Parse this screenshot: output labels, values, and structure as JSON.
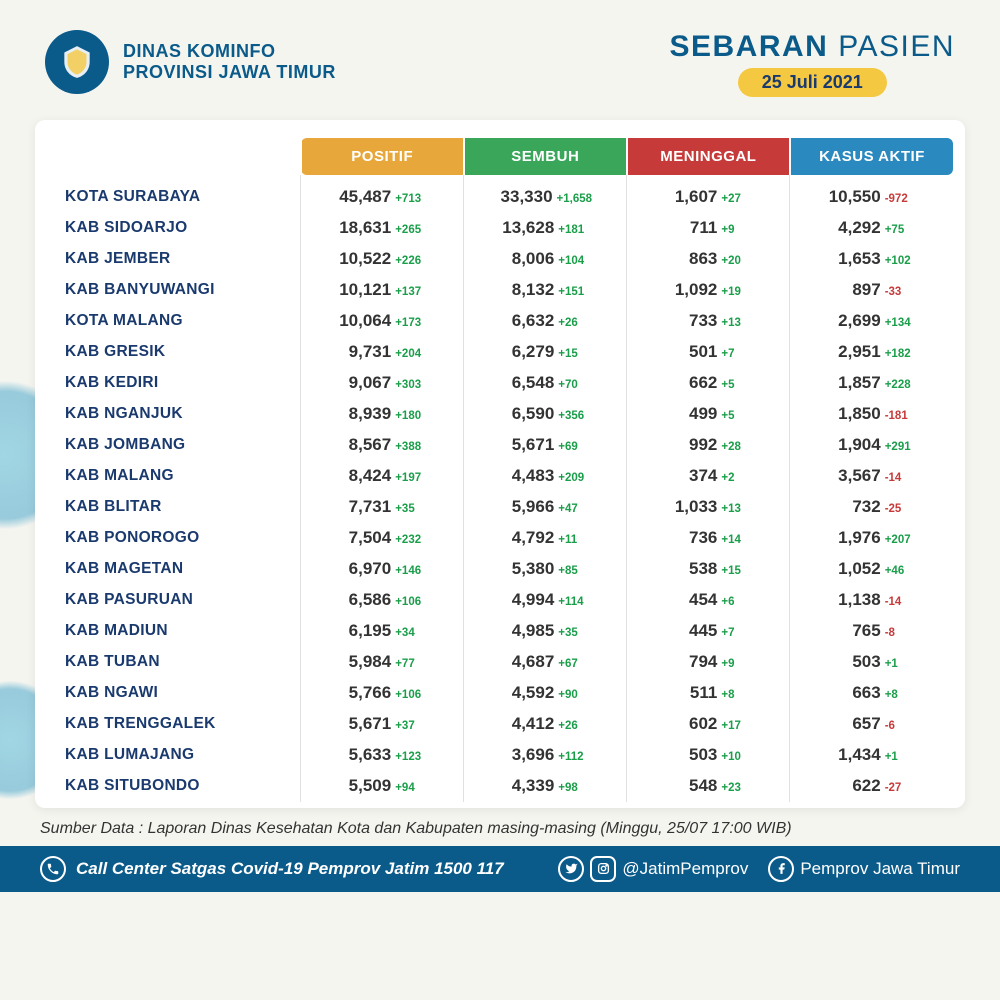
{
  "header": {
    "org_line1": "DINAS KOMINFO",
    "org_line2": "PROVINSI JAWA TIMUR",
    "title_bold": "SEBARAN",
    "title_light": "PASIEN",
    "date": "25 Juli 2021"
  },
  "columns": {
    "positif": "POSITIF",
    "sembuh": "SEMBUH",
    "meninggal": "MENINGGAL",
    "aktif": "KASUS AKTIF"
  },
  "colors": {
    "positif": "#e8a73a",
    "sembuh": "#3aa65a",
    "meninggal": "#c73a3a",
    "aktif": "#2a8abf",
    "brand": "#0a5a8a",
    "delta_pos": "#1a9e4a",
    "delta_neg": "#c73a3a",
    "date_pill": "#f5c842"
  },
  "rows": [
    {
      "name": "KOTA SURABAYA",
      "pos": "45,487",
      "posd": "+713",
      "sem": "33,330",
      "semd": "+1,658",
      "men": "1,607",
      "mend": "+27",
      "akt": "10,550",
      "aktd": "-972"
    },
    {
      "name": "KAB SIDOARJO",
      "pos": "18,631",
      "posd": "+265",
      "sem": "13,628",
      "semd": "+181",
      "men": "711",
      "mend": "+9",
      "akt": "4,292",
      "aktd": "+75"
    },
    {
      "name": "KAB JEMBER",
      "pos": "10,522",
      "posd": "+226",
      "sem": "8,006",
      "semd": "+104",
      "men": "863",
      "mend": "+20",
      "akt": "1,653",
      "aktd": "+102"
    },
    {
      "name": "KAB BANYUWANGI",
      "pos": "10,121",
      "posd": "+137",
      "sem": "8,132",
      "semd": "+151",
      "men": "1,092",
      "mend": "+19",
      "akt": "897",
      "aktd": "-33"
    },
    {
      "name": "KOTA MALANG",
      "pos": "10,064",
      "posd": "+173",
      "sem": "6,632",
      "semd": "+26",
      "men": "733",
      "mend": "+13",
      "akt": "2,699",
      "aktd": "+134"
    },
    {
      "name": "KAB GRESIK",
      "pos": "9,731",
      "posd": "+204",
      "sem": "6,279",
      "semd": "+15",
      "men": "501",
      "mend": "+7",
      "akt": "2,951",
      "aktd": "+182"
    },
    {
      "name": "KAB KEDIRI",
      "pos": "9,067",
      "posd": "+303",
      "sem": "6,548",
      "semd": "+70",
      "men": "662",
      "mend": "+5",
      "akt": "1,857",
      "aktd": "+228"
    },
    {
      "name": "KAB NGANJUK",
      "pos": "8,939",
      "posd": "+180",
      "sem": "6,590",
      "semd": "+356",
      "men": "499",
      "mend": "+5",
      "akt": "1,850",
      "aktd": "-181"
    },
    {
      "name": "KAB JOMBANG",
      "pos": "8,567",
      "posd": "+388",
      "sem": "5,671",
      "semd": "+69",
      "men": "992",
      "mend": "+28",
      "akt": "1,904",
      "aktd": "+291"
    },
    {
      "name": "KAB MALANG",
      "pos": "8,424",
      "posd": "+197",
      "sem": "4,483",
      "semd": "+209",
      "men": "374",
      "mend": "+2",
      "akt": "3,567",
      "aktd": "-14"
    },
    {
      "name": "KAB BLITAR",
      "pos": "7,731",
      "posd": "+35",
      "sem": "5,966",
      "semd": "+47",
      "men": "1,033",
      "mend": "+13",
      "akt": "732",
      "aktd": "-25"
    },
    {
      "name": "KAB PONOROGO",
      "pos": "7,504",
      "posd": "+232",
      "sem": "4,792",
      "semd": "+11",
      "men": "736",
      "mend": "+14",
      "akt": "1,976",
      "aktd": "+207"
    },
    {
      "name": "KAB MAGETAN",
      "pos": "6,970",
      "posd": "+146",
      "sem": "5,380",
      "semd": "+85",
      "men": "538",
      "mend": "+15",
      "akt": "1,052",
      "aktd": "+46"
    },
    {
      "name": "KAB PASURUAN",
      "pos": "6,586",
      "posd": "+106",
      "sem": "4,994",
      "semd": "+114",
      "men": "454",
      "mend": "+6",
      "akt": "1,138",
      "aktd": "-14"
    },
    {
      "name": "KAB MADIUN",
      "pos": "6,195",
      "posd": "+34",
      "sem": "4,985",
      "semd": "+35",
      "men": "445",
      "mend": "+7",
      "akt": "765",
      "aktd": "-8"
    },
    {
      "name": "KAB TUBAN",
      "pos": "5,984",
      "posd": "+77",
      "sem": "4,687",
      "semd": "+67",
      "men": "794",
      "mend": "+9",
      "akt": "503",
      "aktd": "+1"
    },
    {
      "name": "KAB NGAWI",
      "pos": "5,766",
      "posd": "+106",
      "sem": "4,592",
      "semd": "+90",
      "men": "511",
      "mend": "+8",
      "akt": "663",
      "aktd": "+8"
    },
    {
      "name": "KAB TRENGGALEK",
      "pos": "5,671",
      "posd": "+37",
      "sem": "4,412",
      "semd": "+26",
      "men": "602",
      "mend": "+17",
      "akt": "657",
      "aktd": "-6"
    },
    {
      "name": "KAB LUMAJANG",
      "pos": "5,633",
      "posd": "+123",
      "sem": "3,696",
      "semd": "+112",
      "men": "503",
      "mend": "+10",
      "akt": "1,434",
      "aktd": "+1"
    },
    {
      "name": "KAB SITUBONDO",
      "pos": "5,509",
      "posd": "+94",
      "sem": "4,339",
      "semd": "+98",
      "men": "548",
      "mend": "+23",
      "akt": "622",
      "aktd": "-27"
    }
  ],
  "source": "Sumber Data : Laporan Dinas Kesehatan Kota dan Kabupaten masing-masing (Minggu, 25/07 17:00 WIB)",
  "footer": {
    "call_center": "Call Center Satgas Covid-19 Pemprov Jatim 1500 117",
    "handle": "@JatimPemprov",
    "fb": "Pemprov Jawa Timur"
  }
}
